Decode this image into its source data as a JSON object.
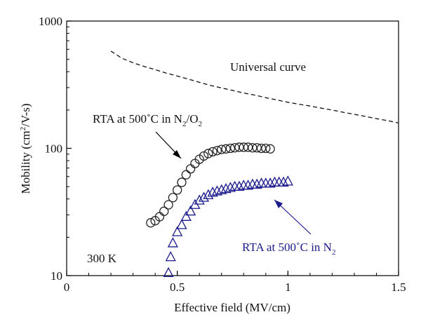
{
  "chart_data": {
    "type": "scatter",
    "xlabel": "Effective field (MV/cm)",
    "ylabel": "Mobility (cm²/V-s)",
    "xlim": [
      0,
      1.5
    ],
    "ylim": [
      10,
      1000
    ],
    "yscale": "log",
    "x_ticks": [
      "0",
      "0.5",
      "1",
      "1.5"
    ],
    "y_ticks": [
      "10",
      "100",
      "1000"
    ],
    "grid": false,
    "colors": {
      "axis": "#000000",
      "black_series": "#222222",
      "blue_series": "#1a1a8c"
    },
    "series": [
      {
        "name": "Universal curve",
        "style": "dashed-line",
        "x": [
          0.2,
          0.25,
          0.3,
          0.35,
          0.4,
          0.45,
          0.5,
          0.55,
          0.6,
          0.65,
          0.7,
          0.75,
          0.8,
          0.85,
          0.9,
          0.95,
          1.0,
          1.05,
          1.1,
          1.15,
          1.2,
          1.25,
          1.3,
          1.35,
          1.4,
          1.45,
          1.5
        ],
        "y": [
          580,
          510,
          470,
          440,
          415,
          390,
          370,
          350,
          330,
          312,
          298,
          285,
          272,
          262,
          250,
          240,
          230,
          222,
          215,
          207,
          200,
          192,
          185,
          178,
          171,
          165,
          158
        ]
      },
      {
        "name": "RTA at 500˚C in N2/O2",
        "marker": "circle",
        "x": [
          0.38,
          0.4,
          0.42,
          0.44,
          0.46,
          0.48,
          0.5,
          0.52,
          0.54,
          0.56,
          0.58,
          0.6,
          0.62,
          0.64,
          0.66,
          0.68,
          0.7,
          0.72,
          0.74,
          0.76,
          0.78,
          0.8,
          0.82,
          0.84,
          0.86,
          0.88,
          0.9,
          0.92
        ],
        "y": [
          26,
          27,
          29,
          32,
          36,
          41,
          47,
          54,
          62,
          69,
          76,
          82,
          87,
          91,
          94,
          96,
          98,
          99,
          100,
          101,
          102,
          102,
          102,
          101,
          101,
          100,
          100,
          99
        ]
      },
      {
        "name": "RTA at 500˚C in N2",
        "marker": "triangle",
        "x": [
          0.46,
          0.47,
          0.48,
          0.5,
          0.52,
          0.54,
          0.56,
          0.58,
          0.6,
          0.62,
          0.64,
          0.66,
          0.68,
          0.7,
          0.72,
          0.74,
          0.76,
          0.78,
          0.8,
          0.82,
          0.84,
          0.86,
          0.88,
          0.9,
          0.92,
          0.94,
          0.96,
          0.98,
          1.0
        ],
        "y": [
          10.5,
          14,
          18,
          22,
          25,
          29,
          32,
          36,
          39,
          41,
          43,
          45,
          46,
          47,
          48,
          49,
          50,
          50,
          51,
          51,
          52,
          52,
          53,
          53,
          53,
          54,
          54,
          54,
          55
        ]
      }
    ],
    "annotations": {
      "universal_label": "Universal curve",
      "n2o2_label": {
        "prefix": "RTA at 500",
        "degree": "˚",
        "middle": "C in N",
        "sub1": "2",
        "slash": "/O",
        "sub2": "2"
      },
      "n2_label": {
        "prefix": "RTA at 500",
        "degree": "˚",
        "middle": "C in N",
        "sub1": "2"
      },
      "temperature_label": "300 K"
    }
  }
}
